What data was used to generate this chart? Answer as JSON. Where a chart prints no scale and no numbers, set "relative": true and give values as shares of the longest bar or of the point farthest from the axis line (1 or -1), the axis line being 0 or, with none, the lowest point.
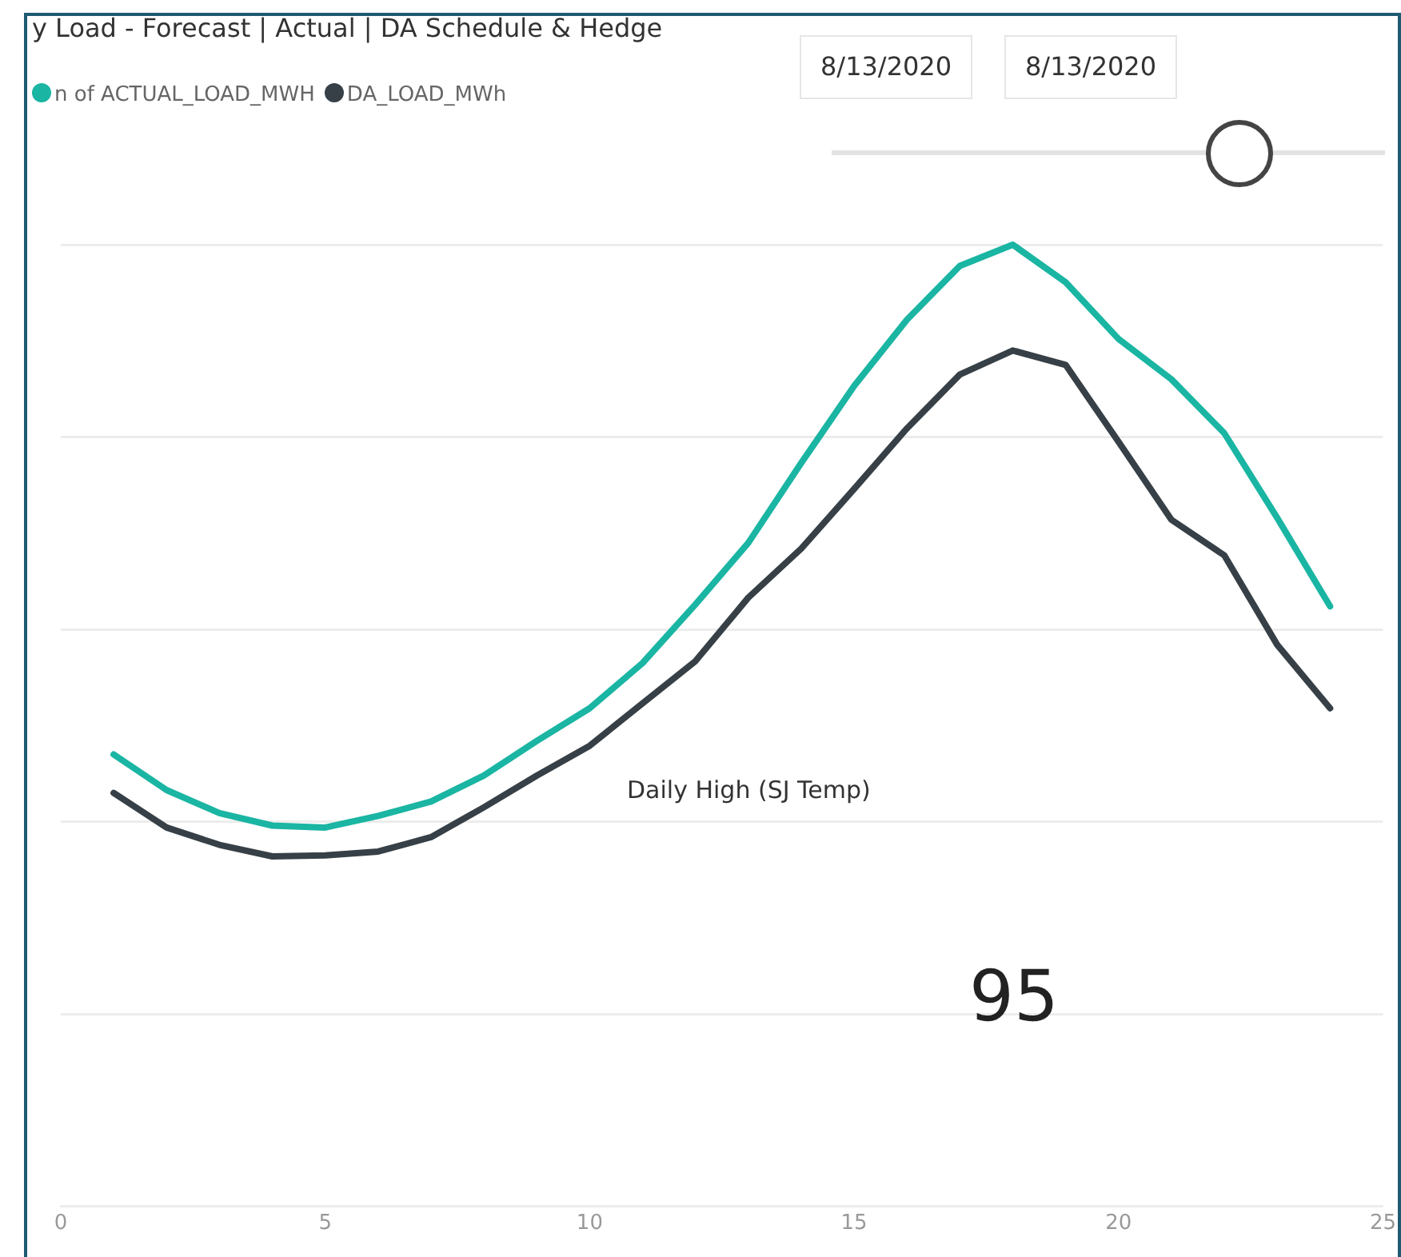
{
  "chart_data": {
    "type": "line",
    "title": "y Load - Forecast | Actual | DA Schedule & Hedge",
    "relative": true,
    "x": [
      1,
      2,
      3,
      4,
      5,
      6,
      7,
      8,
      9,
      10,
      11,
      12,
      13,
      14,
      15,
      16,
      17,
      18,
      19,
      20,
      21,
      22,
      23,
      24
    ],
    "xlim": [
      0,
      25
    ],
    "xticks": [
      0,
      5,
      10,
      15,
      20,
      25
    ],
    "grid": "y",
    "legend": "top left",
    "marker": "none",
    "line_style": "solid",
    "series": [
      {
        "name": "n of ACTUAL_LOAD_MWH",
        "color": "#1ab5a3",
        "values": [
          0.47,
          0.433,
          0.409,
          0.396,
          0.394,
          0.406,
          0.421,
          0.448,
          0.484,
          0.518,
          0.565,
          0.626,
          0.69,
          0.773,
          0.853,
          0.922,
          0.978,
          1,
          0.961,
          0.902,
          0.86,
          0.804,
          0.716,
          0.624
        ]
      },
      {
        "name": "DA_LOAD_MWh",
        "color": "#374046",
        "values": [
          0.43,
          0.394,
          0.376,
          0.364,
          0.365,
          0.369,
          0.384,
          0.415,
          0.448,
          0.479,
          0.523,
          0.567,
          0.633,
          0.684,
          0.746,
          0.809,
          0.865,
          0.89,
          0.875,
          0.795,
          0.714,
          0.677,
          0.584,
          0.518
        ]
      }
    ],
    "annotations": [
      "8/13/2020",
      "8/13/2020",
      "Daily High (SJ Temp)",
      "95"
    ]
  }
}
